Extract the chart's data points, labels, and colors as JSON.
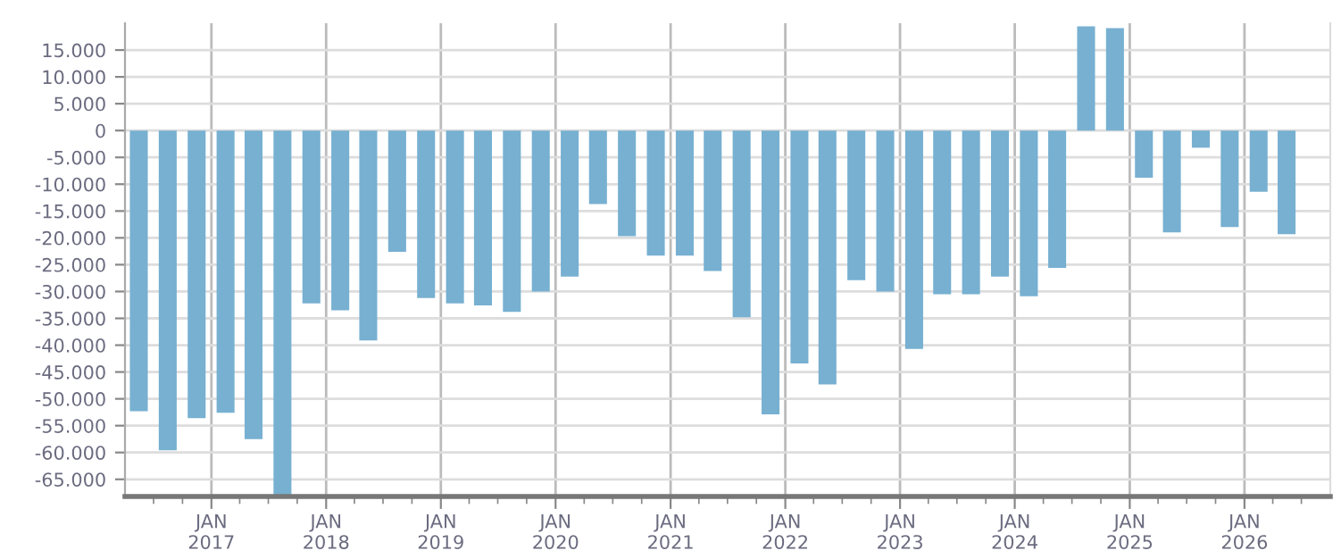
{
  "chart_data": {
    "type": "bar",
    "color": "#77b0d1",
    "grid": true,
    "x": [
      "2016-05-15",
      "2016-08-15",
      "2016-11-15",
      "2017-02-15",
      "2017-05-15",
      "2017-08-15",
      "2017-11-15",
      "2018-02-15",
      "2018-05-15",
      "2018-08-15",
      "2018-11-15",
      "2019-02-15",
      "2019-05-15",
      "2019-08-15",
      "2019-11-15",
      "2020-02-15",
      "2020-05-15",
      "2020-08-15",
      "2020-11-15",
      "2021-02-15",
      "2021-05-15",
      "2021-08-15",
      "2021-11-15",
      "2022-02-15",
      "2022-05-15",
      "2022-08-15",
      "2022-11-15",
      "2023-02-15",
      "2023-05-15",
      "2023-08-15",
      "2023-11-15",
      "2024-02-15",
      "2024-05-15",
      "2024-08-15",
      "2024-11-15",
      "2025-02-15",
      "2025-05-15",
      "2025-08-15",
      "2025-11-15",
      "2026-02-15",
      "2026-05-15"
    ],
    "values": [
      -52300,
      -59600,
      -53600,
      -52600,
      -57500,
      -68200,
      -32200,
      -33500,
      -39100,
      -22600,
      -31200,
      -32200,
      -32600,
      -33800,
      -30000,
      -27200,
      -13700,
      -19700,
      -23300,
      -23300,
      -26200,
      -34800,
      -52900,
      -43400,
      -47300,
      -27900,
      -30000,
      -40700,
      -30500,
      -30500,
      -27200,
      -30900,
      -25600,
      19400,
      19100,
      -8800,
      -19000,
      -3200,
      -18000,
      -11400,
      -19300
    ],
    "xlim": [
      "2016-04-01",
      "2026-10-01"
    ],
    "xticks": [
      {
        "value": "2016-07-01",
        "label": null
      },
      {
        "value": "2016-10-01",
        "label": null
      },
      {
        "value": "2017-01-01",
        "label": "JAN\n2017"
      },
      {
        "value": "2017-04-01",
        "label": null
      },
      {
        "value": "2017-07-01",
        "label": null
      },
      {
        "value": "2017-10-01",
        "label": null
      },
      {
        "value": "2018-01-01",
        "label": "JAN\n2018"
      },
      {
        "value": "2018-04-01",
        "label": null
      },
      {
        "value": "2018-07-01",
        "label": null
      },
      {
        "value": "2018-10-01",
        "label": null
      },
      {
        "value": "2019-01-01",
        "label": "JAN\n2019"
      },
      {
        "value": "2019-04-01",
        "label": null
      },
      {
        "value": "2019-07-01",
        "label": null
      },
      {
        "value": "2019-10-01",
        "label": null
      },
      {
        "value": "2020-01-01",
        "label": "JAN\n2020"
      },
      {
        "value": "2020-04-01",
        "label": null
      },
      {
        "value": "2020-07-01",
        "label": null
      },
      {
        "value": "2020-10-01",
        "label": null
      },
      {
        "value": "2021-01-01",
        "label": "JAN\n2021"
      },
      {
        "value": "2021-04-01",
        "label": null
      },
      {
        "value": "2021-07-01",
        "label": null
      },
      {
        "value": "2021-10-01",
        "label": null
      },
      {
        "value": "2022-01-01",
        "label": "JAN\n2022"
      },
      {
        "value": "2022-04-01",
        "label": null
      },
      {
        "value": "2022-07-01",
        "label": null
      },
      {
        "value": "2022-10-01",
        "label": null
      },
      {
        "value": "2023-01-01",
        "label": "JAN\n2023"
      },
      {
        "value": "2023-04-01",
        "label": null
      },
      {
        "value": "2023-07-01",
        "label": null
      },
      {
        "value": "2023-10-01",
        "label": null
      },
      {
        "value": "2024-01-01",
        "label": "JAN\n2024"
      },
      {
        "value": "2024-04-01",
        "label": null
      },
      {
        "value": "2024-07-01",
        "label": null
      },
      {
        "value": "2024-10-01",
        "label": null
      },
      {
        "value": "2025-01-01",
        "label": "JAN\n2025"
      },
      {
        "value": "2025-04-01",
        "label": null
      },
      {
        "value": "2025-07-01",
        "label": null
      },
      {
        "value": "2025-10-01",
        "label": null
      },
      {
        "value": "2026-01-01",
        "label": "JAN\n2026"
      },
      {
        "value": "2026-04-01",
        "label": null
      },
      {
        "value": "2026-07-01",
        "label": null
      }
    ],
    "ylim": [
      -68200,
      20000
    ],
    "yticks": [
      {
        "value": 15000,
        "label": "15.000"
      },
      {
        "value": 10000,
        "label": "10.000"
      },
      {
        "value": 5000,
        "label": "5.000"
      },
      0,
      {
        "value": -5000,
        "label": "-5.000"
      },
      {
        "value": -10000,
        "label": "-10.000"
      },
      {
        "value": -15000,
        "label": "-15.000"
      },
      {
        "value": -20000,
        "label": "-20.000"
      },
      {
        "value": -25000,
        "label": "-25.000"
      },
      {
        "value": -30000,
        "label": "-30.000"
      },
      {
        "value": -35000,
        "label": "-35.000"
      },
      {
        "value": -40000,
        "label": "-40.000"
      },
      {
        "value": -45000,
        "label": "-45.000"
      },
      {
        "value": -50000,
        "label": "-50.000"
      },
      {
        "value": -55000,
        "label": "-55.000"
      },
      {
        "value": -60000,
        "label": "-60.000"
      },
      {
        "value": -65000,
        "label": "-65.000"
      }
    ]
  }
}
